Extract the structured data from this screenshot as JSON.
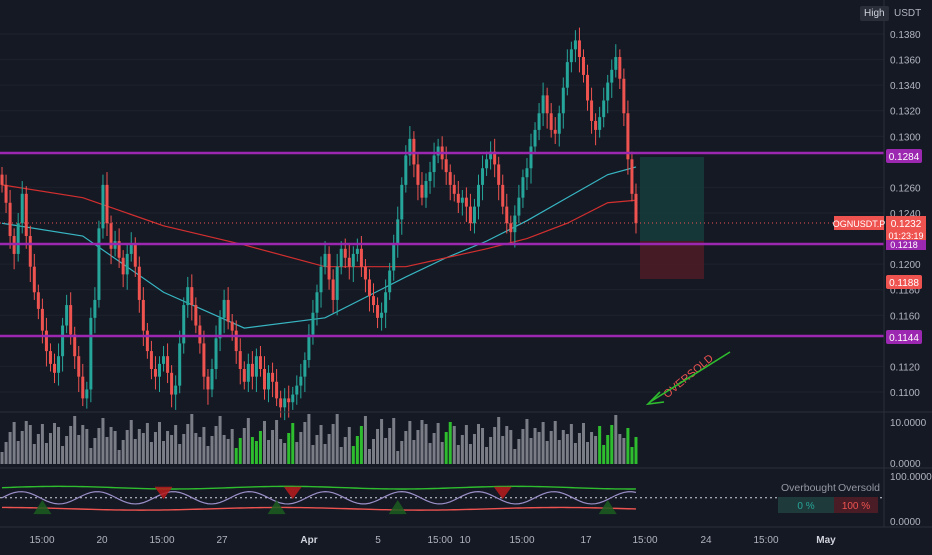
{
  "header": {
    "high_label": "High",
    "unit_label": "USDT"
  },
  "price_axis": {
    "ticks": [
      "0.1380",
      "0.1360",
      "0.1340",
      "0.1320",
      "0.1300",
      "0.1260",
      "0.1240",
      "0.1200",
      "0.1180",
      "0.1160",
      "0.1120",
      "0.1100"
    ]
  },
  "price_tags": {
    "symbol": "OGNUSDT.P",
    "last_price": "0.1232",
    "countdown": "01:23:19",
    "upper_level": "0.1284",
    "lower_level": "0.1144",
    "stop_level": "0.1188",
    "mid_level": "0.1218"
  },
  "annotation": {
    "text": "OVERSOLD"
  },
  "volume_axis": {
    "ticks": [
      "10.0000",
      "0.0000"
    ]
  },
  "oscillator": {
    "axis_ticks": [
      "100.0000",
      "0.0000"
    ],
    "legend": {
      "overbought_label": "Overbought",
      "oversold_label": "Oversold",
      "overbought_value": "0 %",
      "oversold_value": "100 %"
    }
  },
  "time_axis": {
    "labels": [
      "15:00",
      "20",
      "15:00",
      "27",
      "Apr",
      "5",
      "15:00",
      "10",
      "15:00",
      "17",
      "15:00",
      "24",
      "15:00",
      "May"
    ]
  },
  "colors": {
    "background": "#151924",
    "bull": "#26a69a",
    "bear": "#ef5350",
    "level_line": "#9c27b0",
    "ma_fast": "#37b6c2",
    "ma_slow": "#d32f2f",
    "annotation": "#ef5350",
    "arrow": "#2ebd2e"
  },
  "chart_data": [
    {
      "type": "candlestick",
      "x": [
        0,
        1,
        2,
        3,
        4,
        5,
        6,
        7,
        8,
        9,
        10,
        11,
        12,
        13,
        14,
        15,
        16,
        17,
        18,
        19,
        20,
        21,
        22,
        23,
        24,
        25,
        26,
        27,
        28,
        29,
        30,
        31,
        32,
        33,
        34,
        35,
        36,
        37,
        38,
        39,
        40,
        41,
        42,
        43,
        44,
        45,
        46,
        47,
        48,
        49,
        50,
        51,
        52,
        53,
        54,
        55,
        56,
        57,
        58,
        59,
        60,
        61,
        62,
        63,
        64,
        65,
        66,
        67,
        68,
        69,
        70,
        71,
        72,
        73,
        74,
        75,
        76,
        77,
        78,
        79,
        80,
        81,
        82,
        83,
        84,
        85,
        86,
        87,
        88,
        89,
        90,
        91,
        92,
        93,
        94,
        95,
        96,
        97,
        98,
        99,
        100,
        101,
        102,
        103,
        104,
        105,
        106,
        107,
        108,
        109,
        110,
        111,
        112,
        113,
        114,
        115,
        116,
        117,
        118,
        119,
        120,
        121,
        122,
        123,
        124,
        125,
        126,
        127,
        128,
        129,
        130,
        131,
        132,
        133,
        134,
        135,
        136,
        137,
        138,
        139,
        140,
        141,
        142,
        143,
        144,
        145,
        146,
        147,
        148,
        149,
        150,
        151,
        152,
        153,
        154,
        155,
        156,
        157,
        158,
        159,
        160,
        161,
        162,
        163,
        164,
        165,
        166,
        167,
        168,
        169,
        170,
        171,
        172,
        173,
        174,
        175,
        176,
        177,
        178,
        179,
        180,
        181,
        182,
        183,
        184,
        185,
        186,
        187,
        188,
        189,
        190,
        191,
        192,
        193,
        194,
        195,
        196,
        197,
        198,
        199,
        200,
        201,
        202,
        203,
        204,
        205,
        206,
        207,
        208,
        209
      ],
      "close": [
        0.1262,
        0.1248,
        0.1222,
        0.1208,
        0.1232,
        0.1255,
        0.1222,
        0.1198,
        0.1178,
        0.1165,
        0.1148,
        0.1132,
        0.1122,
        0.1115,
        0.1128,
        0.1152,
        0.1168,
        0.1145,
        0.1128,
        0.1112,
        0.1095,
        0.1102,
        0.1158,
        0.1172,
        0.1228,
        0.1262,
        0.1232,
        0.1212,
        0.1218,
        0.1205,
        0.1192,
        0.1208,
        0.1215,
        0.1198,
        0.1172,
        0.1148,
        0.1132,
        0.1118,
        0.1112,
        0.1122,
        0.1128,
        0.1115,
        0.1098,
        0.1105,
        0.1138,
        0.1168,
        0.1182,
        0.1168,
        0.1152,
        0.1138,
        0.1112,
        0.1102,
        0.1118,
        0.1142,
        0.1158,
        0.1172,
        0.1155,
        0.1148,
        0.1132,
        0.1118,
        0.1108,
        0.1122,
        0.1112,
        0.1128,
        0.1118,
        0.1102,
        0.1115,
        0.1108,
        0.1095,
        0.1088,
        0.1095,
        0.1092,
        0.1098,
        0.1105,
        0.1112,
        0.1125,
        0.1145,
        0.1162,
        0.1178,
        0.1198,
        0.1208,
        0.1188,
        0.1172,
        0.1198,
        0.1212,
        0.1205,
        0.1198,
        0.1208,
        0.1212,
        0.1198,
        0.1188,
        0.1175,
        0.1168,
        0.1158,
        0.1162,
        0.1178,
        0.1195,
        0.1215,
        0.1235,
        0.1262,
        0.1285,
        0.1298,
        0.1278,
        0.1262,
        0.1252,
        0.1265,
        0.1272,
        0.1285,
        0.1292,
        0.1282,
        0.1272,
        0.1262,
        0.1255,
        0.1248,
        0.1252,
        0.1245,
        0.1232,
        0.1245,
        0.1262,
        0.1275,
        0.1282,
        0.1288,
        0.1278,
        0.1262,
        0.1245,
        0.1232,
        0.1225,
        0.1238,
        0.1252,
        0.1268,
        0.1275,
        0.1292,
        0.1305,
        0.1318,
        0.1332,
        0.1318,
        0.1305,
        0.1302,
        0.1318,
        0.1338,
        0.1358,
        0.1368,
        0.1375,
        0.1362,
        0.1348,
        0.1328,
        0.1312,
        0.1305,
        0.1315,
        0.1328,
        0.1342,
        0.1352,
        0.1362,
        0.1345,
        0.1318,
        0.1282,
        0.1255,
        0.1232,
        0.1232,
        0.1232,
        0.1232,
        0.1232,
        0.1232,
        0.1232,
        0.1232,
        0.1232,
        0.1232,
        0.1232,
        0.1232,
        0.1232,
        0.1232,
        0.1232,
        0.1232,
        0.1232,
        0.1232,
        0.1232,
        0.1232,
        0.1232,
        0.1232,
        0.1232,
        0.1232,
        0.1232,
        0.1232,
        0.1232,
        0.1232,
        0.1232,
        0.1232,
        0.1232,
        0.1232,
        0.1232,
        0.1232,
        0.1232,
        0.1232,
        0.1232,
        0.1232,
        0.1232,
        0.1232,
        0.1232,
        0.1232,
        0.1232,
        0.1232,
        0.1232,
        0.1232,
        0.1232,
        0.1232,
        0.1232,
        0.1232,
        0.1232,
        0.1232,
        0.1232
      ]
    },
    {
      "type": "line",
      "name": "",
      "x": [
        0,
        20,
        40,
        60,
        80,
        100,
        110,
        120,
        130,
        140,
        150,
        157
      ],
      "y": [
        0.1232,
        0.1222,
        0.1178,
        0.115,
        0.1158,
        0.119,
        0.1205,
        0.1218,
        0.1234,
        0.1252,
        0.127,
        0.1276
      ]
    },
    {
      "type": "line",
      "name": "",
      "x": [
        0,
        20,
        40,
        60,
        80,
        100,
        110,
        120,
        130,
        140,
        150,
        157
      ],
      "y": [
        0.1262,
        0.1252,
        0.123,
        0.1215,
        0.1198,
        0.1198,
        0.1205,
        0.1212,
        0.122,
        0.1232,
        0.1248,
        0.125
      ]
    },
    {
      "type": "bar",
      "name": "",
      "ylim": [
        0,
        10
      ]
    },
    {
      "type": "line",
      "name": "",
      "ylim": [
        0,
        100
      ]
    }
  ]
}
